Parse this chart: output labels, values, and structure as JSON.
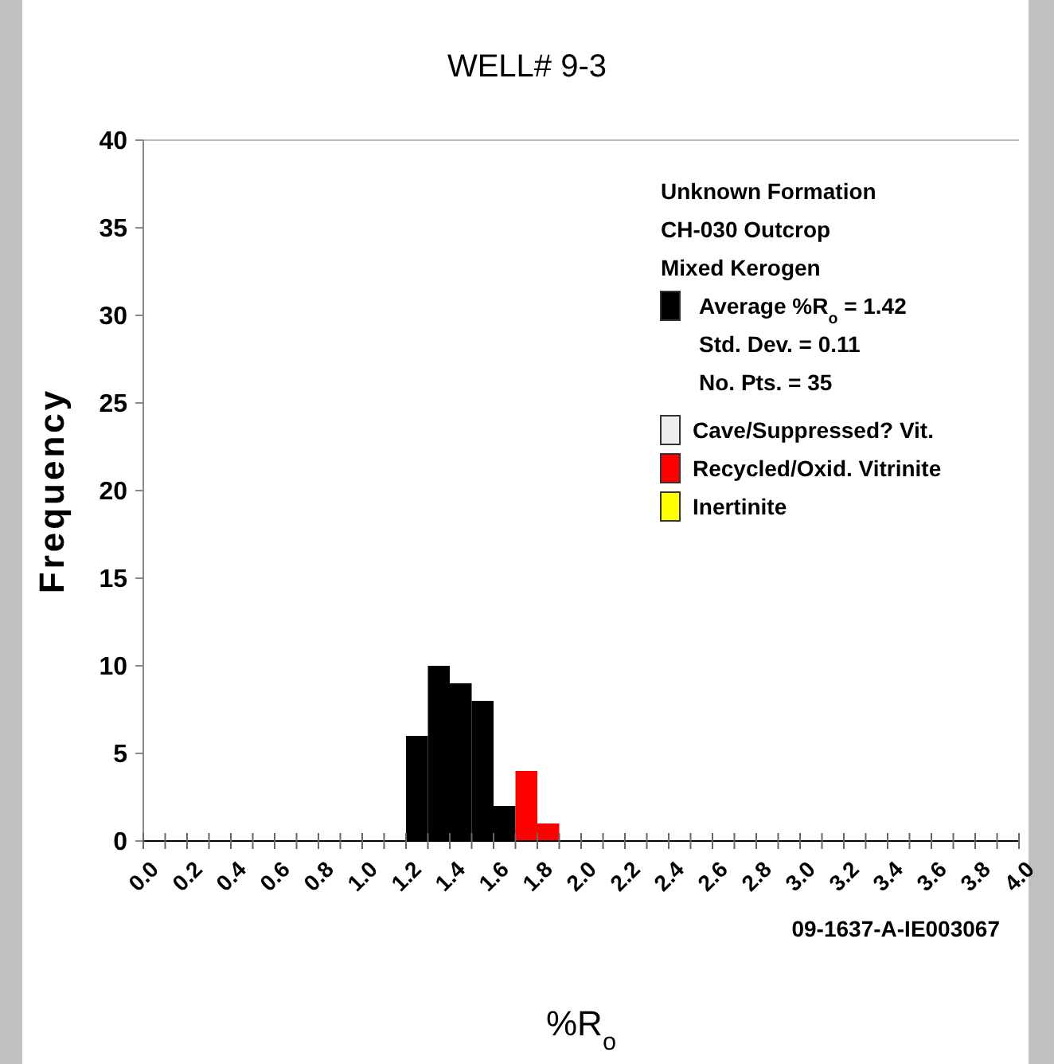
{
  "chart_data": {
    "type": "histogram",
    "title": "WELL# 9-3",
    "xlabel": "%R$_{o}$",
    "ylabel": "Frequency",
    "legend_title": "Unknown Formation\nCH-030 Outcrop\nMixed Kerogen",
    "bins": [
      1.2,
      1.3,
      1.4,
      1.5,
      1.6,
      1.7,
      1.8,
      1.9
    ],
    "series": [
      {
        "name": "Average %R$_{o}$ = 1.42",
        "color": "#000000",
        "values": [
          6,
          10,
          9,
          8,
          2,
          null,
          null
        ]
      },
      {
        "name": "Recycled/Oxid. Vitrinite",
        "color": "#ff0000",
        "values": [
          null,
          null,
          null,
          null,
          null,
          4,
          1
        ]
      }
    ],
    "annotations": [
      "Std. Dev. = 0.11",
      "No. Pts. = 35",
      "Cave/Suppressed? Vit.",
      "Inertinite",
      "09-1637-A-IE003067"
    ],
    "xlim": [
      0,
      4
    ],
    "xticks": [
      {
        "value": 0,
        "label": "0.0"
      },
      {
        "value": 0.1,
        "label": null
      },
      {
        "value": 0.2,
        "label": "0.2"
      },
      {
        "value": 0.3,
        "label": null
      },
      {
        "value": 0.4,
        "label": "0.4"
      },
      {
        "value": 0.5,
        "label": null
      },
      {
        "value": 0.6,
        "label": "0.6"
      },
      {
        "value": 0.7,
        "label": null
      },
      {
        "value": 0.8,
        "label": "0.8"
      },
      {
        "value": 0.9,
        "label": null
      },
      {
        "value": 1,
        "label": "1.0"
      },
      {
        "value": 1.1,
        "label": null
      },
      {
        "value": 1.2,
        "label": "1.2"
      },
      {
        "value": 1.3,
        "label": null
      },
      {
        "value": 1.4,
        "label": "1.4"
      },
      {
        "value": 1.5,
        "label": null
      },
      {
        "value": 1.6,
        "label": "1.6"
      },
      {
        "value": 1.7,
        "label": null
      },
      {
        "value": 1.8,
        "label": "1.8"
      },
      {
        "value": 1.9,
        "label": null
      },
      {
        "value": 2,
        "label": "2.0"
      },
      {
        "value": 2.1,
        "label": null
      },
      {
        "value": 2.2,
        "label": "2.2"
      },
      {
        "value": 2.3,
        "label": null
      },
      {
        "value": 2.4,
        "label": "2.4"
      },
      {
        "value": 2.5,
        "label": null
      },
      {
        "value": 2.6,
        "label": "2.6"
      },
      {
        "value": 2.7,
        "label": null
      },
      {
        "value": 2.8,
        "label": "2.8"
      },
      {
        "value": 2.9,
        "label": null
      },
      {
        "value": 3,
        "label": "3.0"
      },
      {
        "value": 3.1,
        "label": null
      },
      {
        "value": 3.2,
        "label": "3.2"
      },
      {
        "value": 3.3,
        "label": null
      },
      {
        "value": 3.4,
        "label": "3.4"
      },
      {
        "value": 3.5,
        "label": null
      },
      {
        "value": 3.6,
        "label": "3.6"
      },
      {
        "value": 3.7,
        "label": null
      },
      {
        "value": 3.8,
        "label": "3.8"
      },
      {
        "value": 3.9,
        "label": null
      },
      {
        "value": 4,
        "label": "4.0"
      }
    ],
    "ylim": [
      0,
      40
    ],
    "yticks": [
      0,
      5,
      10,
      15,
      20,
      25,
      30,
      35,
      40
    ],
    "grid": false,
    "legend": "top right"
  }
}
